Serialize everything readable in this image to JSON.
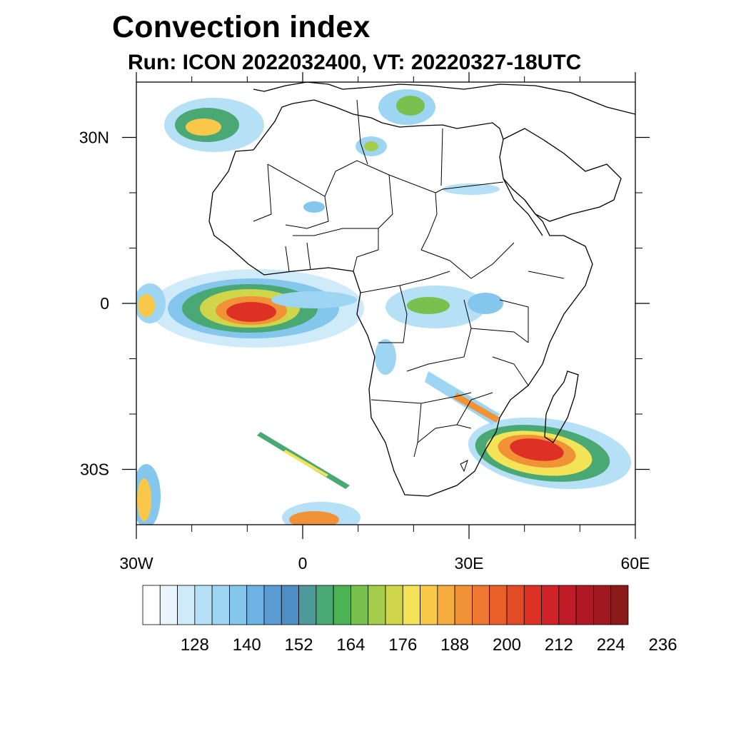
{
  "header": {
    "title": "Convection index",
    "subtitle": "Run: ICON 2022032400,  VT: 20220327-18UTC"
  },
  "map": {
    "projection": "cylindrical equidistant",
    "region": "Africa",
    "lon_range": [
      -30,
      60
    ],
    "lat_range": [
      -40,
      40
    ],
    "lon_tick_labels": [
      {
        "lon": -30,
        "text": "30W"
      },
      {
        "lon": 0,
        "text": "0"
      },
      {
        "lon": 30,
        "text": "30E"
      },
      {
        "lon": 60,
        "text": "60E"
      }
    ],
    "lat_tick_labels": [
      {
        "lat": 30,
        "text": "30N"
      },
      {
        "lat": 0,
        "text": "0"
      },
      {
        "lat": -30,
        "text": "30S"
      }
    ],
    "minor_lon_ticks": [
      -20,
      -10,
      10,
      20,
      40,
      50
    ],
    "minor_lat_ticks": [
      20,
      10,
      -10,
      -20
    ],
    "convective_areas": [
      {
        "region": "tropical Atlantic Gulf of Guinea",
        "peak": "red"
      },
      {
        "region": "Mozambique Channel / off southeast Africa",
        "peak": "red"
      },
      {
        "region": "North Atlantic near Madeira",
        "peak": "orange"
      },
      {
        "region": "Congo basin and East Africa",
        "peak": "green"
      },
      {
        "region": "South Atlantic frontal band",
        "peak": "orange"
      }
    ]
  },
  "colorbar": {
    "colors": [
      "#ffffff",
      "#e8f5fc",
      "#cfeaf8",
      "#b6e0f5",
      "#9dd5f2",
      "#84c6ec",
      "#6cb2e3",
      "#5a9bd4",
      "#4f8ec4",
      "#4e9a9a",
      "#4aa874",
      "#4bb354",
      "#78c14f",
      "#a4cd4c",
      "#cfd64a",
      "#f3e356",
      "#f9c849",
      "#f6ac3e",
      "#f29236",
      "#ee7830",
      "#e9602b",
      "#e34b27",
      "#dc3124",
      "#cf2327",
      "#c01c27",
      "#b01825",
      "#a01820",
      "#8b1a1a"
    ],
    "labels": [
      "128",
      "140",
      "152",
      "164",
      "176",
      "188",
      "200",
      "212",
      "224",
      "236"
    ]
  }
}
